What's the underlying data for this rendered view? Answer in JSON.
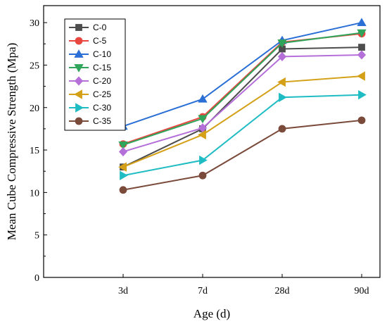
{
  "chart_data": {
    "type": "line",
    "xlabel": "Age (d)",
    "ylabel": "Mean Cube Compressive Strength (Mpa)",
    "categories": [
      "3d",
      "7d",
      "28d",
      "90d"
    ],
    "ylim": [
      0,
      32
    ],
    "yticks": [
      0,
      5,
      10,
      15,
      20,
      25,
      30
    ],
    "grid": false,
    "legend_position": "top-left",
    "series": [
      {
        "name": "C-0",
        "color": "#4d4d4d",
        "marker": "square",
        "values": [
          13.0,
          17.5,
          26.9,
          27.1
        ]
      },
      {
        "name": "C-5",
        "color": "#e8463f",
        "marker": "circle",
        "values": [
          15.7,
          18.9,
          27.7,
          28.7
        ]
      },
      {
        "name": "C-10",
        "color": "#2a6fd6",
        "marker": "triangle-up",
        "values": [
          17.8,
          21.0,
          27.9,
          30.0
        ]
      },
      {
        "name": "C-15",
        "color": "#2ea55a",
        "marker": "triangle-down",
        "values": [
          15.6,
          18.7,
          27.6,
          28.8
        ]
      },
      {
        "name": "C-20",
        "color": "#b56fd9",
        "marker": "diamond",
        "values": [
          14.8,
          17.6,
          26.0,
          26.2
        ]
      },
      {
        "name": "C-25",
        "color": "#d4a017",
        "marker": "triangle-left",
        "values": [
          13.0,
          16.8,
          23.0,
          23.7
        ]
      },
      {
        "name": "C-30",
        "color": "#1fbcc4",
        "marker": "triangle-right",
        "values": [
          12.0,
          13.8,
          21.2,
          21.5
        ]
      },
      {
        "name": "C-35",
        "color": "#7a4a3a",
        "marker": "circle",
        "values": [
          10.3,
          12.0,
          17.5,
          18.5
        ]
      }
    ]
  }
}
